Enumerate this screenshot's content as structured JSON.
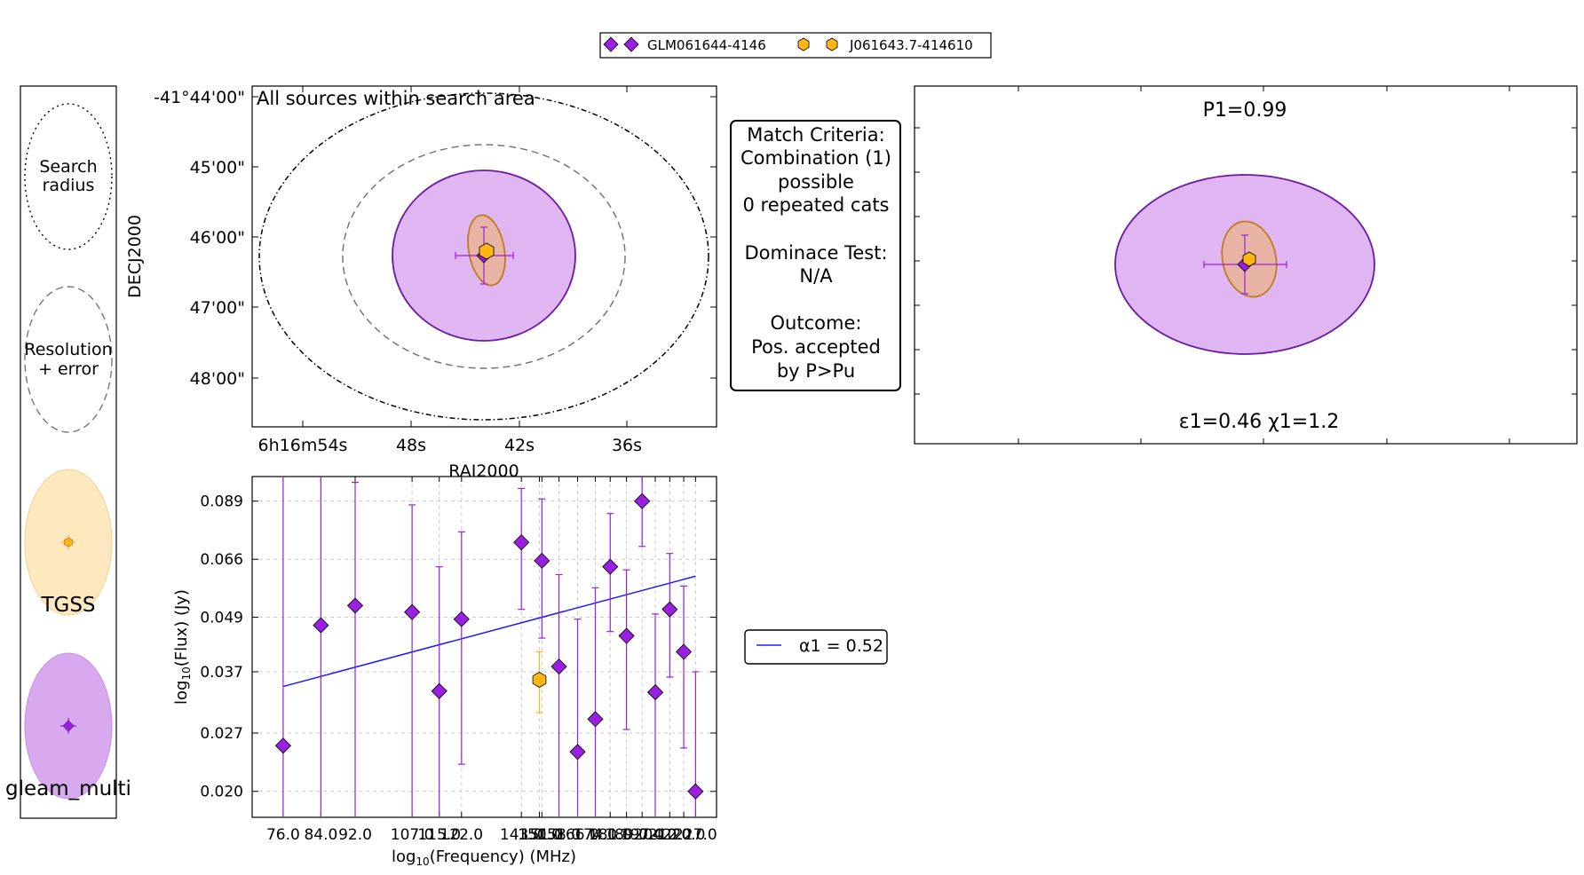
{
  "legend_top": {
    "items": [
      {
        "label": "GLM061644-4146",
        "color": "#9b1fe0",
        "marker": "diamond"
      },
      {
        "label": "J061643.7-414610",
        "color": "#ffb612",
        "marker": "hexagon"
      }
    ]
  },
  "key_panel": {
    "search_label": [
      "Search",
      "radius"
    ],
    "resolution_label": [
      "Resolution",
      "+ error"
    ],
    "tgss_label": "TGSS",
    "gleam_label": "gleam_multi"
  },
  "sky_panel": {
    "title": "All sources within search area",
    "xlabel": "RAJ2000",
    "ylabel": "DECJ2000",
    "xticks": [
      "6h16m54s",
      "48s",
      "42s",
      "36s"
    ],
    "yticks": [
      "-41°44'00\"",
      "45'00\"",
      "46'00\"",
      "47'00\"",
      "48'00\""
    ]
  },
  "criteria_box": {
    "lines": [
      "Match Criteria:",
      "Combination (1)",
      "possible",
      "0 repeated cats",
      "",
      "Dominace Test:",
      "N/A",
      "",
      "Outcome:",
      "Pos. accepted",
      "by P>Pu"
    ]
  },
  "zoom_panel": {
    "top_text": "P1=0.99",
    "bottom_text": "ε1=0.46 χ1=1.2"
  },
  "fit_legend": {
    "label": "α1 = 0.52",
    "color": "#1a1aff"
  },
  "colors": {
    "gleam": "#9b1fe0",
    "gleam_fill": "#dfb5f2",
    "gleam_edge": "#6a1aa0",
    "tgss": "#ffb612",
    "tgss_fill": "#fde8c0",
    "tgss_edge": "#c07a20",
    "fit_line": "#1a1aff"
  },
  "chart_data": {
    "type": "scatter",
    "xlabel": "log10(Frequency) (MHz)",
    "ylabel": "log10(Flux) (Jy)",
    "x_log": true,
    "y_log": true,
    "xlim": [
      70,
      240
    ],
    "ylim": [
      0.0175,
      0.101
    ],
    "xtick_labels": [
      "76.0",
      "84.0",
      "92.0",
      "107.0",
      "115.0",
      "122.0",
      "143.0",
      "150.0",
      "151.0",
      "158.0",
      "166.0",
      "174.0",
      "181.0",
      "189.0",
      "197.0",
      "204.0",
      "212.0",
      "220.0",
      "227.0"
    ],
    "xtick_values": [
      76,
      84,
      92,
      107,
      115,
      122,
      143,
      150,
      151,
      158,
      166,
      174,
      181,
      189,
      197,
      204,
      212,
      220,
      227
    ],
    "ytick_labels": [
      "0.020",
      "0.027",
      "0.037",
      "0.049",
      "0.066",
      "0.089"
    ],
    "ytick_values": [
      0.02,
      0.027,
      0.037,
      0.049,
      0.066,
      0.089
    ],
    "grid": true,
    "series": [
      {
        "name": "GLM061644-4146",
        "marker": "diamond",
        "x": [
          76,
          84,
          92,
          107,
          115,
          122,
          143,
          151,
          158,
          166,
          174,
          181,
          189,
          197,
          204,
          212,
          220,
          227
        ],
        "y": [
          0.0253,
          0.047,
          0.052,
          0.0503,
          0.0335,
          0.0485,
          0.072,
          0.0655,
          0.038,
          0.0245,
          0.029,
          0.0635,
          0.0445,
          0.089,
          0.0333,
          0.051,
          0.041,
          0.02
        ],
        "err_low": [
          0.0253,
          0.047,
          0.052,
          0.0503,
          0.0335,
          0.0255,
          0.021,
          0.0215,
          0.038,
          0.0245,
          0.029,
          0.018,
          0.017,
          0.0185,
          0.0333,
          0.015,
          0.016,
          0.02
        ],
        "err_high": [
          0.079,
          0.06,
          0.046,
          0.037,
          0.03,
          0.0275,
          0.023,
          0.0245,
          0.023,
          0.024,
          0.028,
          0.02,
          0.018,
          0.02,
          0.0165,
          0.017,
          0.0165,
          0.017
        ]
      },
      {
        "name": "J061643.7-414610",
        "marker": "hexagon",
        "x": [
          150
        ],
        "y": [
          0.0355
        ],
        "err_low": [
          0.0055
        ],
        "err_high": [
          0.0055
        ]
      }
    ],
    "fit": {
      "label": "α1 = 0.52",
      "x": [
        76,
        227
      ],
      "y": [
        0.0343,
        0.0605
      ]
    }
  }
}
